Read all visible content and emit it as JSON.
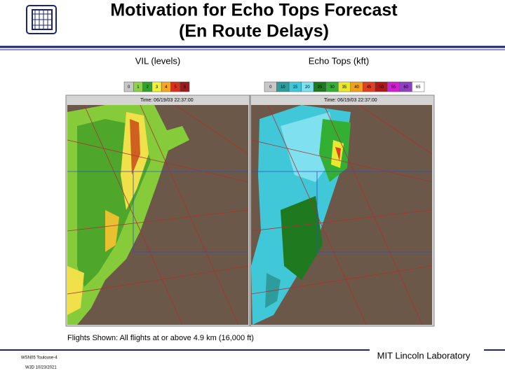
{
  "header": {
    "title_line1": "Motivation for Echo Tops Forecast",
    "title_line2": "(En Route Delays)"
  },
  "panels": [
    {
      "label": "VIL (levels)",
      "time": "Time: 06/19/03 22:37:00",
      "legend": [
        {
          "label": "0",
          "color": "#c8c8c8"
        },
        {
          "label": "1",
          "color": "#8fd14f"
        },
        {
          "label": "2",
          "color": "#33a02c"
        },
        {
          "label": "3",
          "color": "#f2f23a"
        },
        {
          "label": "4",
          "color": "#f5a623"
        },
        {
          "label": "5",
          "color": "#d7301f"
        },
        {
          "label": "6",
          "color": "#9e1a1a"
        }
      ]
    },
    {
      "label": "Echo Tops (kft)",
      "time": "Time: 06/19/03 22:37:00",
      "legend": [
        {
          "label": "0",
          "color": "#c8c8c8"
        },
        {
          "label": "10",
          "color": "#2e9c9c"
        },
        {
          "label": "15",
          "color": "#40c8d8"
        },
        {
          "label": "20",
          "color": "#7fe0f0"
        },
        {
          "label": "25",
          "color": "#1f7a1f"
        },
        {
          "label": "30",
          "color": "#33b033"
        },
        {
          "label": "35",
          "color": "#e8e830"
        },
        {
          "label": "40",
          "color": "#f0a020"
        },
        {
          "label": "45",
          "color": "#e04020"
        },
        {
          "label": "50",
          "color": "#b01818"
        },
        {
          "label": "55",
          "color": "#d020d0"
        },
        {
          "label": "60",
          "color": "#9040c0"
        },
        {
          "label": "65",
          "color": "#ffffff"
        }
      ]
    }
  ],
  "caption": "Flights Shown:  All flights at or above 4.9 km (16,000 ft)",
  "footer": {
    "organization": "MIT Lincoln Laboratory",
    "line1": "WSN05 Toulouse-4",
    "line2": "WJD 10/23/2021"
  }
}
